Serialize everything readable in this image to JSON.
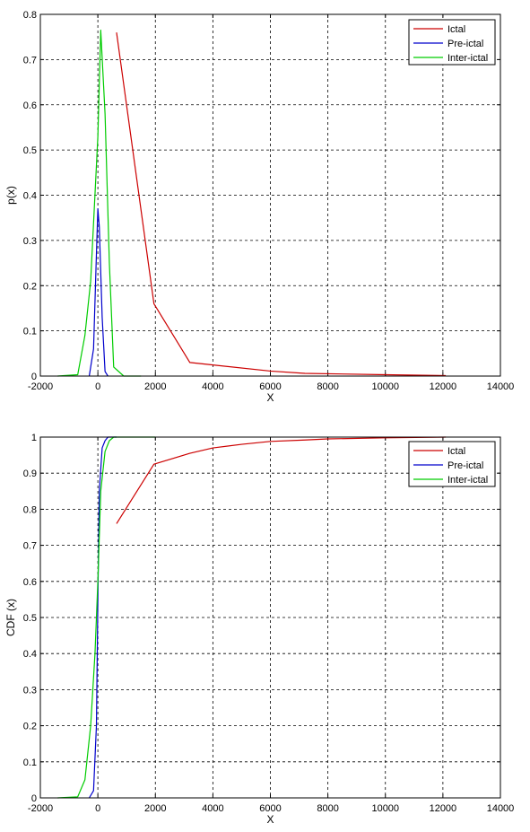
{
  "chart_data": [
    {
      "type": "line",
      "title": "",
      "xlabel": "X",
      "ylabel": "p(x)",
      "xlim": [
        -2000,
        14000
      ],
      "ylim": [
        0,
        0.8
      ],
      "xticks": [
        -2000,
        0,
        2000,
        4000,
        6000,
        8000,
        10000,
        12000,
        14000
      ],
      "xtick_labels": [
        "-2000",
        "0",
        "2000",
        "4000",
        "6000",
        "8000",
        "10000",
        "12000",
        "14000"
      ],
      "yticks": [
        0,
        0.1,
        0.2,
        0.3,
        0.4,
        0.5,
        0.6,
        0.7,
        0.8
      ],
      "ytick_labels": [
        "0",
        "0.1",
        "0.2",
        "0.3",
        "0.4",
        "0.5",
        "0.6",
        "0.7",
        "0.8"
      ],
      "grid": true,
      "legend_position": "top-right",
      "series": [
        {
          "name": "Ictal",
          "color": "#cc0000",
          "x": [
            650,
            1950,
            3200,
            6000,
            7200,
            10000,
            12100
          ],
          "y": [
            0.76,
            0.16,
            0.03,
            0.011,
            0.006,
            0.003,
            0.001
          ]
        },
        {
          "name": "Pre-ictal",
          "color": "#0000cc",
          "x": [
            -300,
            -150,
            -50,
            0,
            50,
            150,
            250,
            350
          ],
          "y": [
            0.0,
            0.06,
            0.27,
            0.37,
            0.33,
            0.13,
            0.01,
            0.0
          ]
        },
        {
          "name": "Inter-ictal",
          "color": "#00cc00",
          "x": [
            -1400,
            -700,
            -450,
            -250,
            0,
            100,
            250,
            400,
            550,
            900,
            1500
          ],
          "y": [
            0.0,
            0.003,
            0.09,
            0.21,
            0.53,
            0.765,
            0.58,
            0.25,
            0.02,
            0.0,
            0.0
          ]
        }
      ]
    },
    {
      "type": "line",
      "title": "",
      "xlabel": "X",
      "ylabel": "CDF (x)",
      "xlim": [
        -2000,
        14000
      ],
      "ylim": [
        0,
        1
      ],
      "xticks": [
        -2000,
        0,
        2000,
        4000,
        6000,
        8000,
        10000,
        12000,
        14000
      ],
      "xtick_labels": [
        "-2000",
        "0",
        "2000",
        "4000",
        "6000",
        "8000",
        "10000",
        "12000",
        "14000"
      ],
      "yticks": [
        0,
        0.1,
        0.2,
        0.3,
        0.4,
        0.5,
        0.6,
        0.7,
        0.8,
        0.9,
        1
      ],
      "ytick_labels": [
        "0",
        "0.1",
        "0.2",
        "0.3",
        "0.4",
        "0.5",
        "0.6",
        "0.7",
        "0.8",
        "0.9",
        "1"
      ],
      "grid": true,
      "legend_position": "top-right",
      "series": [
        {
          "name": "Ictal",
          "color": "#cc0000",
          "x": [
            650,
            1950,
            3200,
            4000,
            5000,
            6000,
            7200,
            8000,
            10000,
            12100
          ],
          "y": [
            0.76,
            0.925,
            0.955,
            0.97,
            0.98,
            0.988,
            0.992,
            0.995,
            0.998,
            1.0
          ]
        },
        {
          "name": "Pre-ictal",
          "color": "#0000cc",
          "x": [
            -300,
            -150,
            -50,
            0,
            50,
            150,
            250,
            350,
            650
          ],
          "y": [
            0.0,
            0.02,
            0.2,
            0.55,
            0.85,
            0.97,
            0.99,
            1.0,
            1.0
          ]
        },
        {
          "name": "Inter-ictal",
          "color": "#00cc00",
          "x": [
            -1400,
            -700,
            -450,
            -250,
            -100,
            0,
            100,
            250,
            400,
            550,
            900,
            2000
          ],
          "y": [
            0.0,
            0.003,
            0.05,
            0.2,
            0.4,
            0.6,
            0.85,
            0.96,
            0.99,
            1.0,
            1.0,
            1.0
          ]
        }
      ]
    }
  ]
}
